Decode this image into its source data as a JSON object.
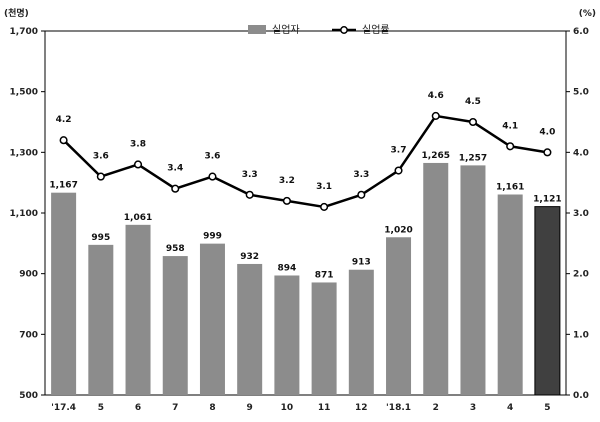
{
  "chart_data": {
    "type": "bar",
    "categories": [
      "'17.4",
      "5",
      "6",
      "7",
      "8",
      "9",
      "10",
      "11",
      "12",
      "'18.1",
      "2",
      "3",
      "4",
      "5"
    ],
    "series": [
      {
        "name": "실업자",
        "kind": "bar",
        "axis": "left",
        "values": [
          1167,
          995,
          1061,
          958,
          999,
          932,
          894,
          871,
          913,
          1020,
          1265,
          1257,
          1161,
          1121
        ],
        "value_labels": [
          "1,167",
          "995",
          "1,061",
          "958",
          "999",
          "932",
          "894",
          "871",
          "913",
          "1,020",
          "1,265",
          "1,257",
          "1,161",
          "1,121"
        ],
        "color": "#8c8c8c",
        "highlight_last_color": "#404040"
      },
      {
        "name": "실업률",
        "kind": "line",
        "axis": "right",
        "values": [
          4.2,
          3.6,
          3.8,
          3.4,
          3.6,
          3.3,
          3.2,
          3.1,
          3.3,
          3.7,
          4.6,
          4.5,
          4.1,
          4.0
        ],
        "value_labels": [
          "4.2",
          "3.6",
          "3.8",
          "3.4",
          "3.6",
          "3.3",
          "3.2",
          "3.1",
          "3.3",
          "3.7",
          "4.6",
          "4.5",
          "4.1",
          "4.0"
        ],
        "color": "#000000",
        "marker": "open-circle"
      }
    ],
    "left_axis": {
      "unit": "(천명)",
      "ylim": [
        500,
        1700
      ],
      "ticks": [
        500,
        700,
        900,
        1100,
        1300,
        1500,
        1700
      ],
      "tick_labels": [
        "500",
        "700",
        "900",
        "1,100",
        "1,300",
        "1,500",
        "1,700"
      ]
    },
    "right_axis": {
      "unit": "(%)",
      "ylim": [
        0,
        6
      ],
      "ticks": [
        0,
        1,
        2,
        3,
        4,
        5,
        6
      ],
      "tick_labels": [
        "0.0",
        "1.0",
        "2.0",
        "3.0",
        "4.0",
        "5.0",
        "6.0"
      ]
    },
    "legend": {
      "position": "top-center",
      "entries": [
        "실업자",
        "실업률"
      ]
    },
    "grid": false
  }
}
